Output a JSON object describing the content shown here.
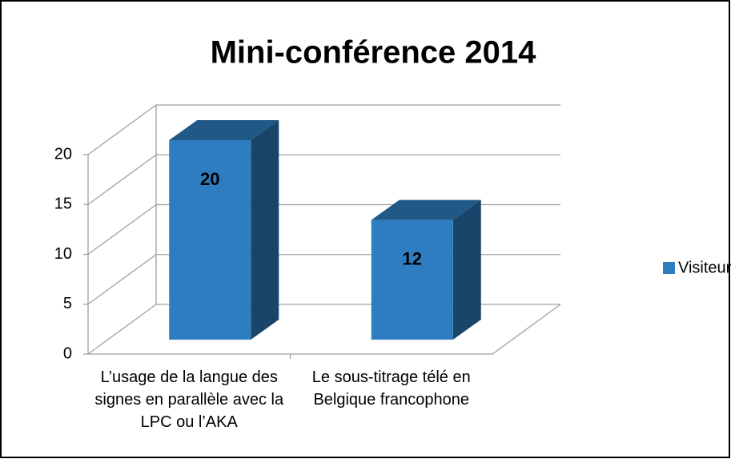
{
  "chart_data": {
    "type": "bar",
    "title": "Mini-conférence 2014",
    "categories": [
      "L’usage de la langue des signes en parallèle avec la LPC ou l’AKA",
      "Le sous-titrage télé en Belgique francophone"
    ],
    "series": [
      {
        "name": "Visiteurs",
        "color": "#2e7dc0",
        "values": [
          20,
          12
        ]
      }
    ],
    "ylim": [
      0,
      20
    ],
    "yticks": [
      0,
      5,
      10,
      15,
      20
    ],
    "grid": true,
    "legend": "right"
  }
}
